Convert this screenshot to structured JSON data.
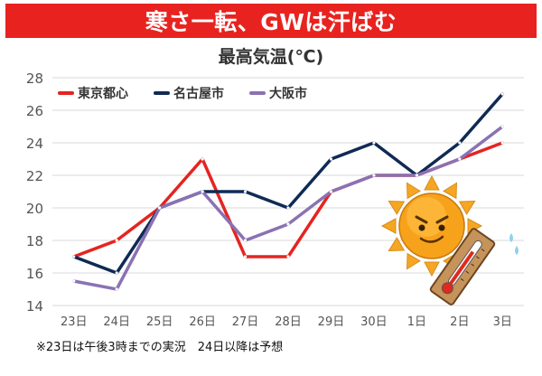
{
  "banner": {
    "title": "寒さ一転、GWは汗ばむ"
  },
  "footer": {
    "note": "※23日は午後3時までの実況　24日以降は予想"
  },
  "chart_data": {
    "type": "line",
    "title": "最高気温(℃)",
    "categories": [
      "23日",
      "24日",
      "25日",
      "26日",
      "27日",
      "28日",
      "29日",
      "30日",
      "1日",
      "2日",
      "3日"
    ],
    "series": [
      {
        "name": "東京都心",
        "color": "#e52421",
        "values": [
          17,
          18,
          20,
          23,
          17,
          17,
          21,
          22,
          22,
          23,
          24
        ]
      },
      {
        "name": "名古屋市",
        "color": "#0f2a54",
        "values": [
          17,
          16,
          20,
          21,
          21,
          20,
          23,
          24,
          22,
          24,
          27
        ]
      },
      {
        "name": "大阪市",
        "color": "#8a72b3",
        "values": [
          15.5,
          15,
          20,
          21,
          18,
          19,
          21,
          22,
          22,
          23,
          25
        ]
      }
    ],
    "ylim": [
      14,
      28
    ],
    "yticks": [
      14,
      16,
      18,
      20,
      22,
      24,
      26,
      28
    ],
    "grid": true,
    "legend": "top-left"
  },
  "illustration": {
    "sun_icon": "smiling-sun-icon",
    "thermometer_icon": "thermometer-icon",
    "sun_color": "#f5a623"
  }
}
